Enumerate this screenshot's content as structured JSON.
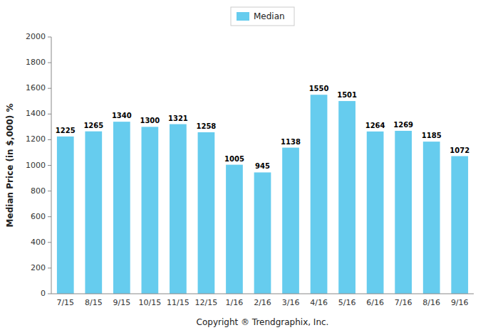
{
  "chart_data": {
    "type": "bar",
    "categories": [
      "7/15",
      "8/15",
      "9/15",
      "10/15",
      "11/15",
      "12/15",
      "1/16",
      "2/16",
      "3/16",
      "4/16",
      "5/16",
      "6/16",
      "7/16",
      "8/16",
      "9/16"
    ],
    "series": [
      {
        "name": "Median",
        "color": "#66CCEE",
        "values": [
          1225,
          1265,
          1340,
          1300,
          1321,
          1258,
          1005,
          945,
          1138,
          1550,
          1501,
          1264,
          1269,
          1185,
          1072
        ]
      }
    ],
    "xlabel": "Copyright ® Trendgraphix, Inc.",
    "ylabel": "Median Price (in $,000) %",
    "ylim": [
      0,
      2000
    ],
    "yticks": [
      0,
      200,
      400,
      600,
      800,
      1000,
      1200,
      1400,
      1600,
      1800,
      2000
    ],
    "grid": false,
    "legend": "top",
    "data_labels": true
  }
}
